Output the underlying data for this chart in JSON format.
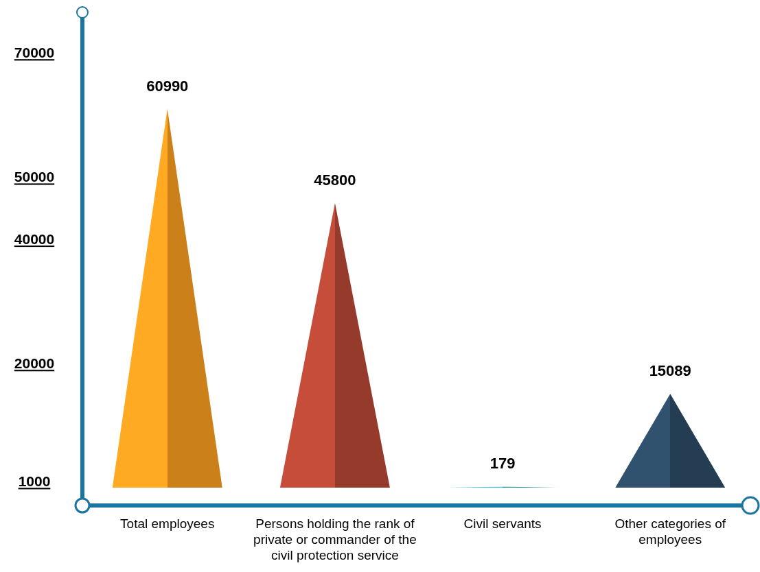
{
  "chart_data": {
    "type": "bar",
    "categories": [
      "Total employees",
      "Persons holding the rank of private or commander of the civil protection service",
      "Civil servants",
      "Other categories of employees"
    ],
    "values": [
      60990,
      45800,
      179,
      15089
    ],
    "colors": [
      "#f0961e",
      "#b04434",
      "#2ab3bf",
      "#2a4862"
    ],
    "ylim": [
      0,
      76500
    ],
    "yticks": [
      1000,
      20000,
      40000,
      50000,
      70000
    ],
    "data_labels": true,
    "grid": false
  }
}
